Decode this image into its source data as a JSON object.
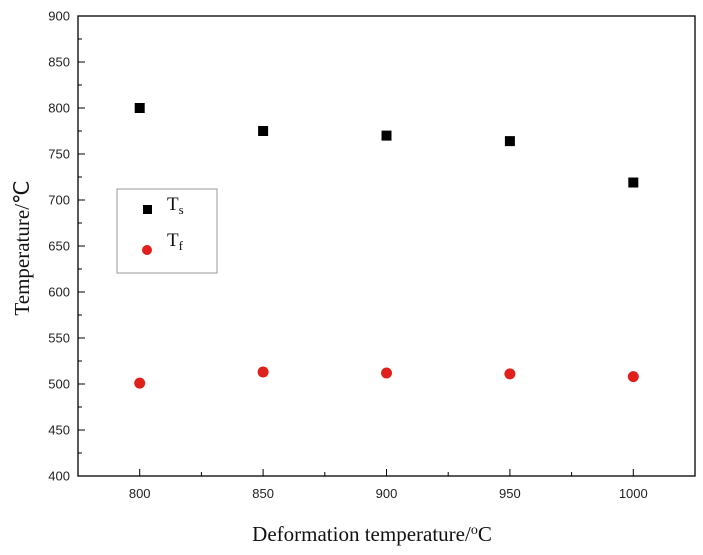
{
  "chart_data": {
    "type": "scatter",
    "title": "",
    "xlabel": "Deformation temperature/",
    "xlabel_unit_sup": "o",
    "xlabel_unit": "C",
    "ylabel": "Temperature/℃",
    "xlim": [
      775,
      1025
    ],
    "ylim": [
      400,
      900
    ],
    "xticks": [
      800,
      850,
      900,
      950,
      1000
    ],
    "yticks": [
      400,
      450,
      500,
      550,
      600,
      650,
      700,
      750,
      800,
      850,
      900
    ],
    "grid": false,
    "legend_position": "middle-left",
    "x": [
      800,
      850,
      900,
      950,
      1000
    ],
    "series": [
      {
        "name": "T",
        "subscript": "s",
        "marker": "square",
        "color": "#000000",
        "values": [
          800,
          775,
          770,
          764,
          719
        ]
      },
      {
        "name": "T",
        "subscript": "f",
        "marker": "circle",
        "color": "#e0201b",
        "values": [
          501,
          513,
          512,
          511,
          508
        ]
      }
    ]
  }
}
